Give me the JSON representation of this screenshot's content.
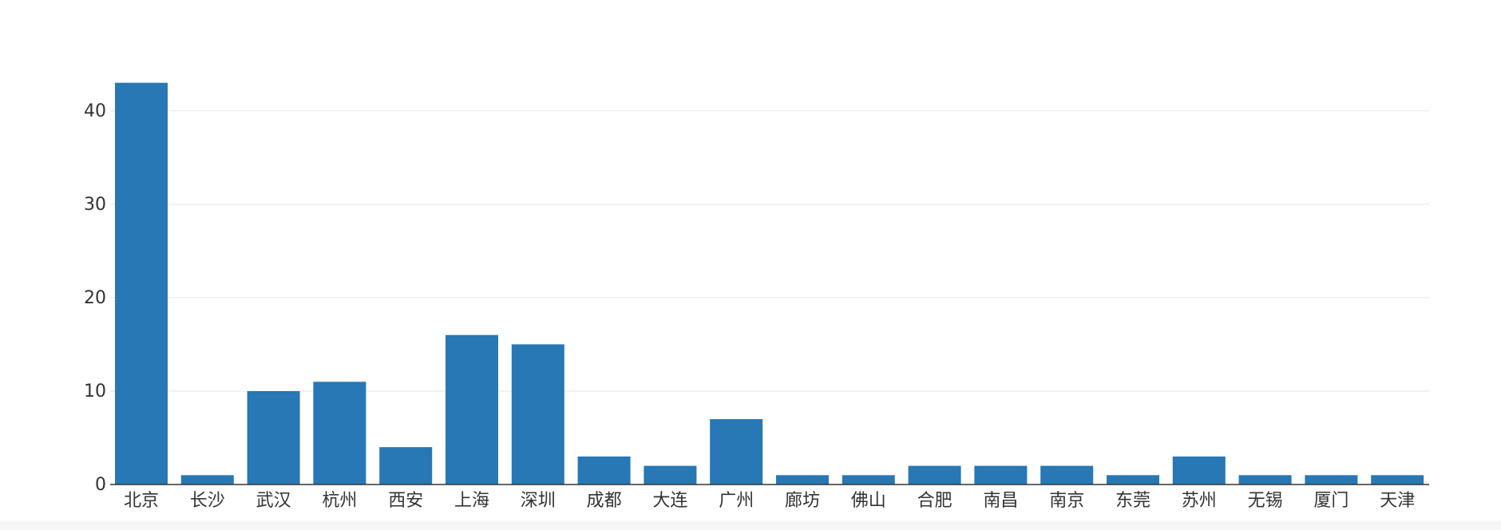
{
  "chart_data": {
    "type": "bar",
    "categories": [
      "北京",
      "长沙",
      "武汉",
      "杭州",
      "西安",
      "上海",
      "深圳",
      "成都",
      "大连",
      "广州",
      "廊坊",
      "佛山",
      "合肥",
      "南昌",
      "南京",
      "东莞",
      "苏州",
      "无锡",
      "厦门",
      "天津"
    ],
    "values": [
      43,
      1,
      10,
      11,
      4,
      16,
      15,
      3,
      2,
      7,
      1,
      1,
      2,
      2,
      2,
      1,
      3,
      1,
      1,
      1
    ],
    "yticks": [
      0,
      10,
      20,
      30,
      40
    ],
    "ylim": [
      0,
      44
    ],
    "title": "",
    "xlabel": "",
    "ylabel": "",
    "grid": true,
    "legend": "none",
    "colors": {
      "bar": "#2778b4",
      "grid": "#e6e6e6",
      "axis": "#333333",
      "text": "#333333"
    }
  }
}
